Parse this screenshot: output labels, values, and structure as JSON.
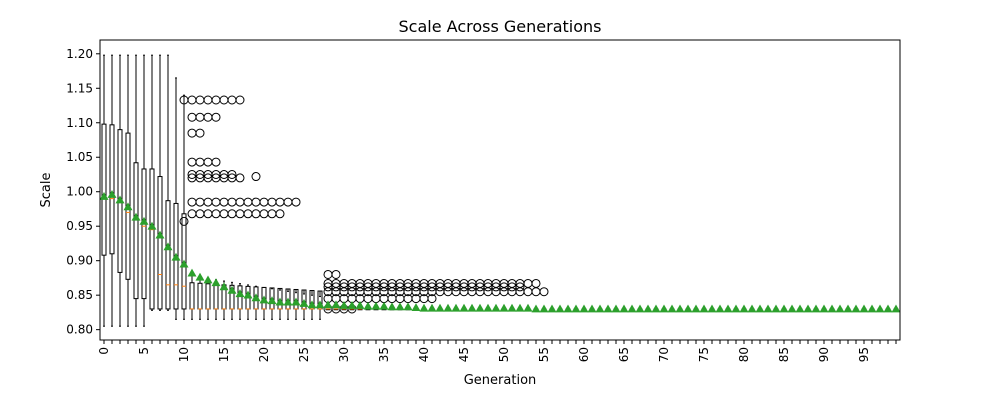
{
  "chart_data": {
    "type": "box",
    "title": "Scale Across Generations",
    "xlabel": "Generation",
    "ylabel": "Scale",
    "xlim": [
      -0.5,
      99.5
    ],
    "ylim": [
      0.785,
      1.22
    ],
    "yticks": [
      0.8,
      0.85,
      0.9,
      0.95,
      1.0,
      1.05,
      1.1,
      1.15,
      1.2
    ],
    "ytick_labels": [
      "0.80",
      "0.85",
      "0.90",
      "0.95",
      "1.00",
      "1.05",
      "1.10",
      "1.15",
      "1.20"
    ],
    "xtick_step": 5,
    "xtick_labels": [
      "0",
      "5",
      "10",
      "15",
      "20",
      "25",
      "30",
      "35",
      "40",
      "45",
      "50",
      "55",
      "60",
      "65",
      "70",
      "75",
      "80",
      "85",
      "90",
      "95"
    ],
    "grid": false,
    "colors": {
      "median": "#ff7f0e",
      "mean_marker": "#2ca02c",
      "box": "#000000"
    },
    "boxes_early": [
      {
        "g": 0,
        "lo": 0.805,
        "q1": 0.908,
        "med": 0.99,
        "q3": 1.098,
        "hi": 1.198
      },
      {
        "g": 1,
        "lo": 0.805,
        "q1": 0.91,
        "med": 0.99,
        "q3": 1.097,
        "hi": 1.198
      },
      {
        "g": 2,
        "lo": 0.805,
        "q1": 0.883,
        "med": 0.985,
        "q3": 1.09,
        "hi": 1.198
      },
      {
        "g": 3,
        "lo": 0.805,
        "q1": 0.873,
        "med": 0.97,
        "q3": 1.085,
        "hi": 1.198
      },
      {
        "g": 4,
        "lo": 0.805,
        "q1": 0.845,
        "med": 0.96,
        "q3": 1.042,
        "hi": 1.198
      },
      {
        "g": 5,
        "lo": 0.805,
        "q1": 0.845,
        "med": 0.95,
        "q3": 1.033,
        "hi": 1.198
      },
      {
        "g": 6,
        "lo": 0.828,
        "q1": 0.83,
        "med": 0.945,
        "q3": 1.033,
        "hi": 1.198
      },
      {
        "g": 7,
        "lo": 0.828,
        "q1": 0.83,
        "med": 0.88,
        "q3": 1.022,
        "hi": 1.198
      },
      {
        "g": 8,
        "lo": 0.828,
        "q1": 0.83,
        "med": 0.865,
        "q3": 0.987,
        "hi": 1.198
      },
      {
        "g": 9,
        "lo": 0.815,
        "q1": 0.83,
        "med": 0.865,
        "q3": 0.983,
        "hi": 1.165
      },
      {
        "g": 10,
        "lo": 0.815,
        "q1": 0.83,
        "med": 0.863,
        "q3": 0.968,
        "hi": 1.14
      }
    ],
    "whisker_range_mid": [
      0.815,
      0.878
    ],
    "fliers": [
      {
        "from": 10,
        "to": 15,
        "y": 1.133
      },
      {
        "from": 16,
        "to": 17,
        "y": 1.133
      },
      {
        "from": 11,
        "to": 14,
        "y": 1.108
      },
      {
        "from": 11,
        "to": 12,
        "y": 1.085
      },
      {
        "from": 11,
        "to": 14,
        "y": 1.043
      },
      {
        "from": 11,
        "to": 16,
        "y": 1.025
      },
      {
        "from": 11,
        "to": 17,
        "y": 1.02
      },
      {
        "from": 19,
        "to": 19,
        "y": 1.022
      },
      {
        "from": 11,
        "to": 24,
        "y": 0.985
      },
      {
        "from": 11,
        "to": 22,
        "y": 0.968
      },
      {
        "from": 10,
        "to": 10,
        "y": 0.957
      },
      {
        "from": 28,
        "to": 29,
        "y": 0.88
      },
      {
        "from": 28,
        "to": 54,
        "y": 0.867
      },
      {
        "from": 28,
        "to": 52,
        "y": 0.862
      },
      {
        "from": 28,
        "to": 55,
        "y": 0.855
      },
      {
        "from": 28,
        "to": 41,
        "y": 0.845
      },
      {
        "from": 28,
        "to": 31,
        "y": 0.83
      }
    ],
    "mean_values": [
      0.993,
      0.996,
      0.988,
      0.978,
      0.963,
      0.957,
      0.95,
      0.937,
      0.92,
      0.905,
      0.895,
      0.882,
      0.876,
      0.872,
      0.868,
      0.862,
      0.857,
      0.852,
      0.85,
      0.846,
      0.843,
      0.842,
      0.84,
      0.84,
      0.84,
      0.838,
      0.836,
      0.836,
      0.836,
      0.836,
      0.835,
      0.835,
      0.835,
      0.834,
      0.834,
      0.834,
      0.833,
      0.833,
      0.833,
      0.832,
      0.831,
      0.831,
      0.831,
      0.831,
      0.831,
      0.831,
      0.831,
      0.831,
      0.831,
      0.831,
      0.831,
      0.831,
      0.831,
      0.831,
      0.83,
      0.83,
      0.83,
      0.83,
      0.83,
      0.83,
      0.83,
      0.83,
      0.83,
      0.83,
      0.83,
      0.83,
      0.83,
      0.83,
      0.83,
      0.83,
      0.83,
      0.83,
      0.83,
      0.83,
      0.83,
      0.83,
      0.83,
      0.83,
      0.83,
      0.83,
      0.83,
      0.83,
      0.83,
      0.83,
      0.83,
      0.83,
      0.83,
      0.83,
      0.83,
      0.83,
      0.83,
      0.83,
      0.83,
      0.83,
      0.83,
      0.83,
      0.83,
      0.83,
      0.83,
      0.83
    ]
  }
}
